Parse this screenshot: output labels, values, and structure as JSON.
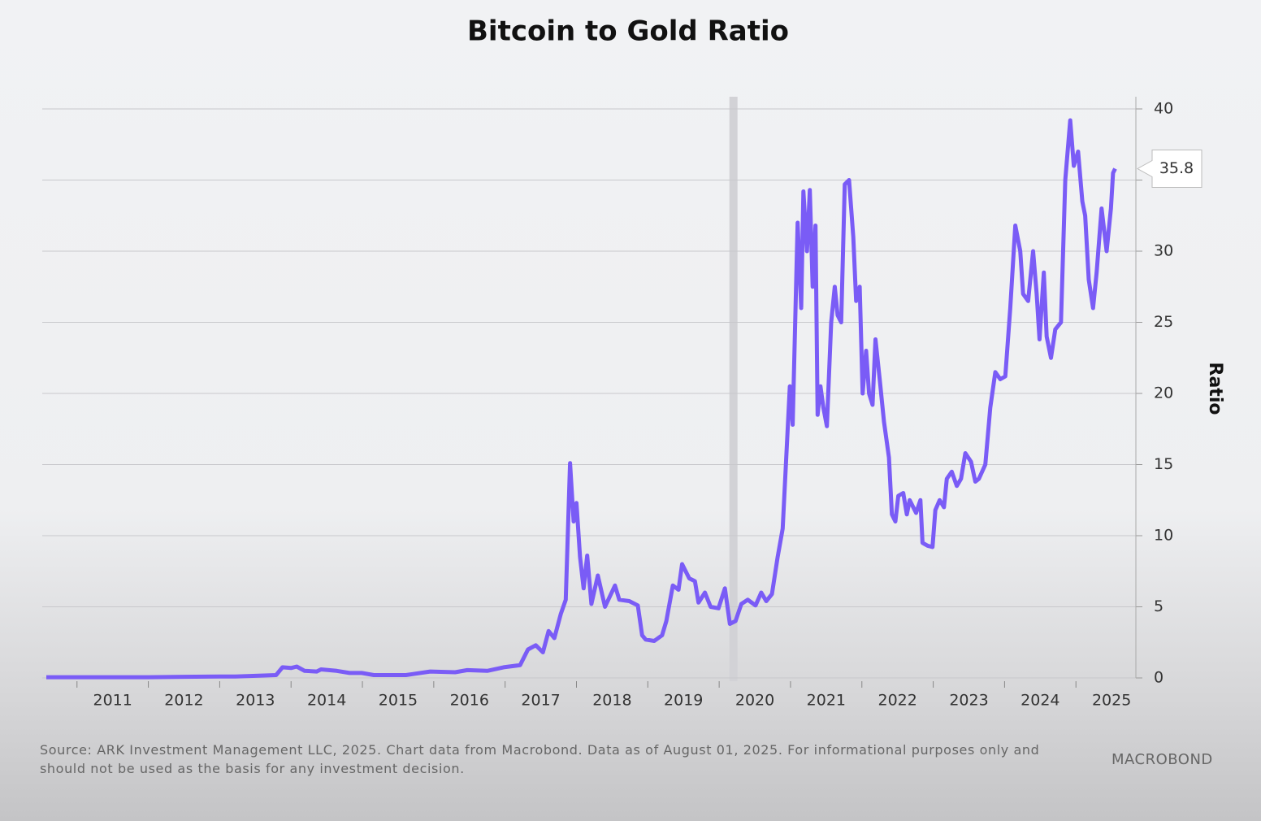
{
  "chart_data": {
    "type": "line",
    "title": "Bitcoin to Gold Ratio",
    "y_axis_label": "Ratio",
    "source": "Source: ARK Investment Management LLC, 2025. Chart data from Macrobond. Data as of August 01, 2025. For informational purposes only and should not be used as the basis for any investment decision.",
    "logo": "MACROBOND",
    "xlim": [
      2010.57,
      2025.84
    ],
    "xticks": [
      2011,
      2012,
      2013,
      2014,
      2015,
      2016,
      2017,
      2018,
      2019,
      2020,
      2021,
      2022,
      2023,
      2024,
      2025
    ],
    "ylim": [
      0,
      40
    ],
    "yticks": [
      0,
      5,
      10,
      15,
      20,
      25,
      30,
      35,
      40
    ],
    "grid": true,
    "shaded_x": 2020.2,
    "x": [
      2010.57,
      2011.0,
      2012.0,
      2012.5,
      2013.0,
      2013.22,
      2013.79,
      2013.88,
      2014.0,
      2014.08,
      2014.19,
      2014.36,
      2014.42,
      2014.64,
      2014.82,
      2014.99,
      2015.16,
      2015.61,
      2015.95,
      2016.3,
      2016.47,
      2016.75,
      2016.98,
      2017.21,
      2017.32,
      2017.43,
      2017.53,
      2017.61,
      2017.69,
      2017.78,
      2017.85,
      2017.91,
      2017.96,
      2018.0,
      2018.05,
      2018.1,
      2018.15,
      2018.21,
      2018.3,
      2018.4,
      2018.54,
      2018.6,
      2018.74,
      2018.86,
      2018.92,
      2018.97,
      2019.09,
      2019.2,
      2019.26,
      2019.35,
      2019.43,
      2019.48,
      2019.58,
      2019.66,
      2019.71,
      2019.8,
      2019.88,
      2019.99,
      2020.08,
      2020.15,
      2020.23,
      2020.31,
      2020.4,
      2020.51,
      2020.59,
      2020.66,
      2020.74,
      2020.82,
      2020.89,
      2020.94,
      2020.99,
      2021.03,
      2021.1,
      2021.15,
      2021.18,
      2021.23,
      2021.27,
      2021.31,
      2021.35,
      2021.38,
      2021.42,
      2021.46,
      2021.51,
      2021.57,
      2021.62,
      2021.66,
      2021.71,
      2021.76,
      2021.82,
      2021.88,
      2021.92,
      2021.97,
      2022.01,
      2022.06,
      2022.1,
      2022.15,
      2022.19,
      2022.25,
      2022.31,
      2022.38,
      2022.42,
      2022.47,
      2022.51,
      2022.58,
      2022.63,
      2022.67,
      2022.76,
      2022.82,
      2022.85,
      2022.92,
      2022.99,
      2023.03,
      2023.09,
      2023.15,
      2023.19,
      2023.26,
      2023.33,
      2023.39,
      2023.45,
      2023.53,
      2023.59,
      2023.64,
      2023.73,
      2023.8,
      2023.87,
      2023.94,
      2024.01,
      2024.08,
      2024.15,
      2024.22,
      2024.26,
      2024.33,
      2024.4,
      2024.45,
      2024.49,
      2024.55,
      2024.59,
      2024.65,
      2024.71,
      2024.79,
      2024.85,
      2024.92,
      2024.97,
      2025.03,
      2025.09,
      2025.13,
      2025.18,
      2025.24,
      2025.29,
      2025.36,
      2025.43,
      2025.49,
      2025.52,
      2025.55
    ],
    "series": [
      {
        "name": "Ratio",
        "color": "#7a5cf6",
        "values": [
          0.05,
          0.05,
          0.05,
          0.08,
          0.1,
          0.1,
          0.2,
          0.75,
          0.7,
          0.8,
          0.5,
          0.45,
          0.6,
          0.5,
          0.35,
          0.35,
          0.2,
          0.2,
          0.45,
          0.4,
          0.55,
          0.5,
          0.75,
          0.9,
          2.0,
          2.3,
          1.8,
          3.3,
          2.8,
          4.5,
          5.5,
          15.1,
          11.0,
          12.3,
          8.5,
          6.3,
          8.6,
          5.2,
          7.2,
          5.0,
          6.5,
          5.5,
          5.4,
          5.1,
          3.0,
          2.7,
          2.6,
          3.0,
          4.0,
          6.5,
          6.2,
          8.0,
          7.0,
          6.8,
          5.3,
          6.0,
          5.0,
          4.9,
          6.3,
          3.8,
          4.0,
          5.2,
          5.5,
          5.1,
          6.0,
          5.4,
          5.9,
          8.5,
          10.5,
          15.5,
          20.5,
          17.8,
          32.0,
          26.0,
          34.2,
          30.0,
          34.3,
          27.5,
          31.8,
          18.5,
          20.5,
          19.0,
          17.7,
          25.0,
          27.5,
          25.5,
          25.0,
          34.7,
          35.0,
          31.0,
          26.5,
          27.5,
          20.0,
          23.0,
          20.0,
          19.2,
          23.8,
          21.0,
          18.0,
          15.5,
          11.5,
          11.0,
          12.8,
          13.0,
          11.5,
          12.5,
          11.6,
          12.5,
          9.5,
          9.3,
          9.2,
          11.8,
          12.5,
          12.0,
          14.0,
          14.5,
          13.5,
          14.0,
          15.8,
          15.2,
          13.8,
          14.0,
          15.0,
          19.0,
          21.5,
          21.0,
          21.2,
          26.0,
          31.8,
          30.0,
          27.0,
          26.5,
          30.0,
          27.0,
          23.8,
          28.5,
          24.0,
          22.5,
          24.5,
          25.0,
          35.0,
          39.2,
          36.0,
          37.0,
          33.5,
          32.5,
          28.0,
          26.0,
          28.5,
          33.0,
          30.0,
          33.0,
          35.5,
          35.8
        ]
      }
    ]
  }
}
